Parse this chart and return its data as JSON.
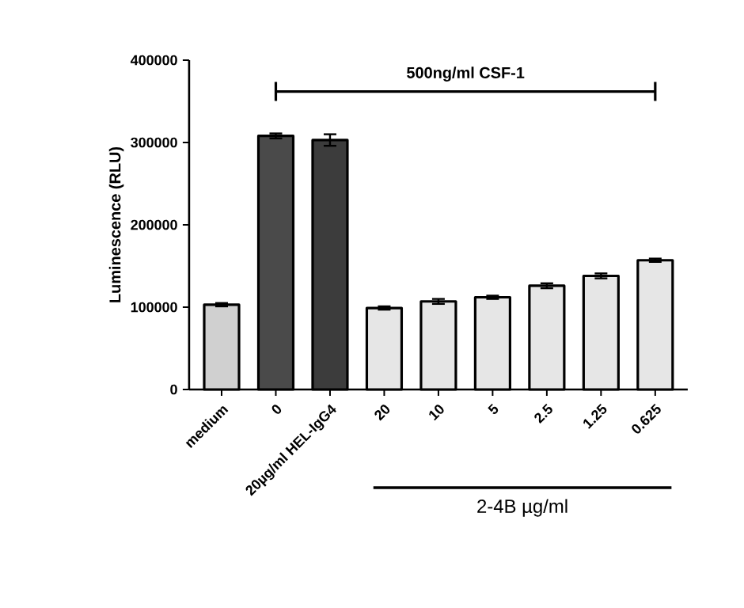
{
  "chart_data": {
    "type": "bar",
    "ylabel": "Luminescence (RLU)",
    "categories": [
      "medium",
      "0",
      "20µg/ml HEL-IgG4",
      "20",
      "10",
      "5",
      "2.5",
      "1.25",
      "0.625"
    ],
    "values": [
      103000,
      308000,
      303000,
      99000,
      107000,
      112000,
      126000,
      138000,
      157000
    ],
    "errors": [
      2000,
      3000,
      7000,
      2000,
      3000,
      2000,
      3000,
      3000,
      2000
    ],
    "colors": [
      "#d0d0d0",
      "#4a4a4a",
      "#3c3c3c",
      "#e6e6e6",
      "#e6e6e6",
      "#e6e6e6",
      "#e6e6e6",
      "#e6e6e6",
      "#e6e6e6"
    ],
    "ylim": [
      0,
      400000
    ],
    "yticks": [
      0,
      100000,
      200000,
      300000,
      400000
    ],
    "annotations": [
      "500ng/ml CSF-1",
      "2-4B µg/ml"
    ]
  }
}
